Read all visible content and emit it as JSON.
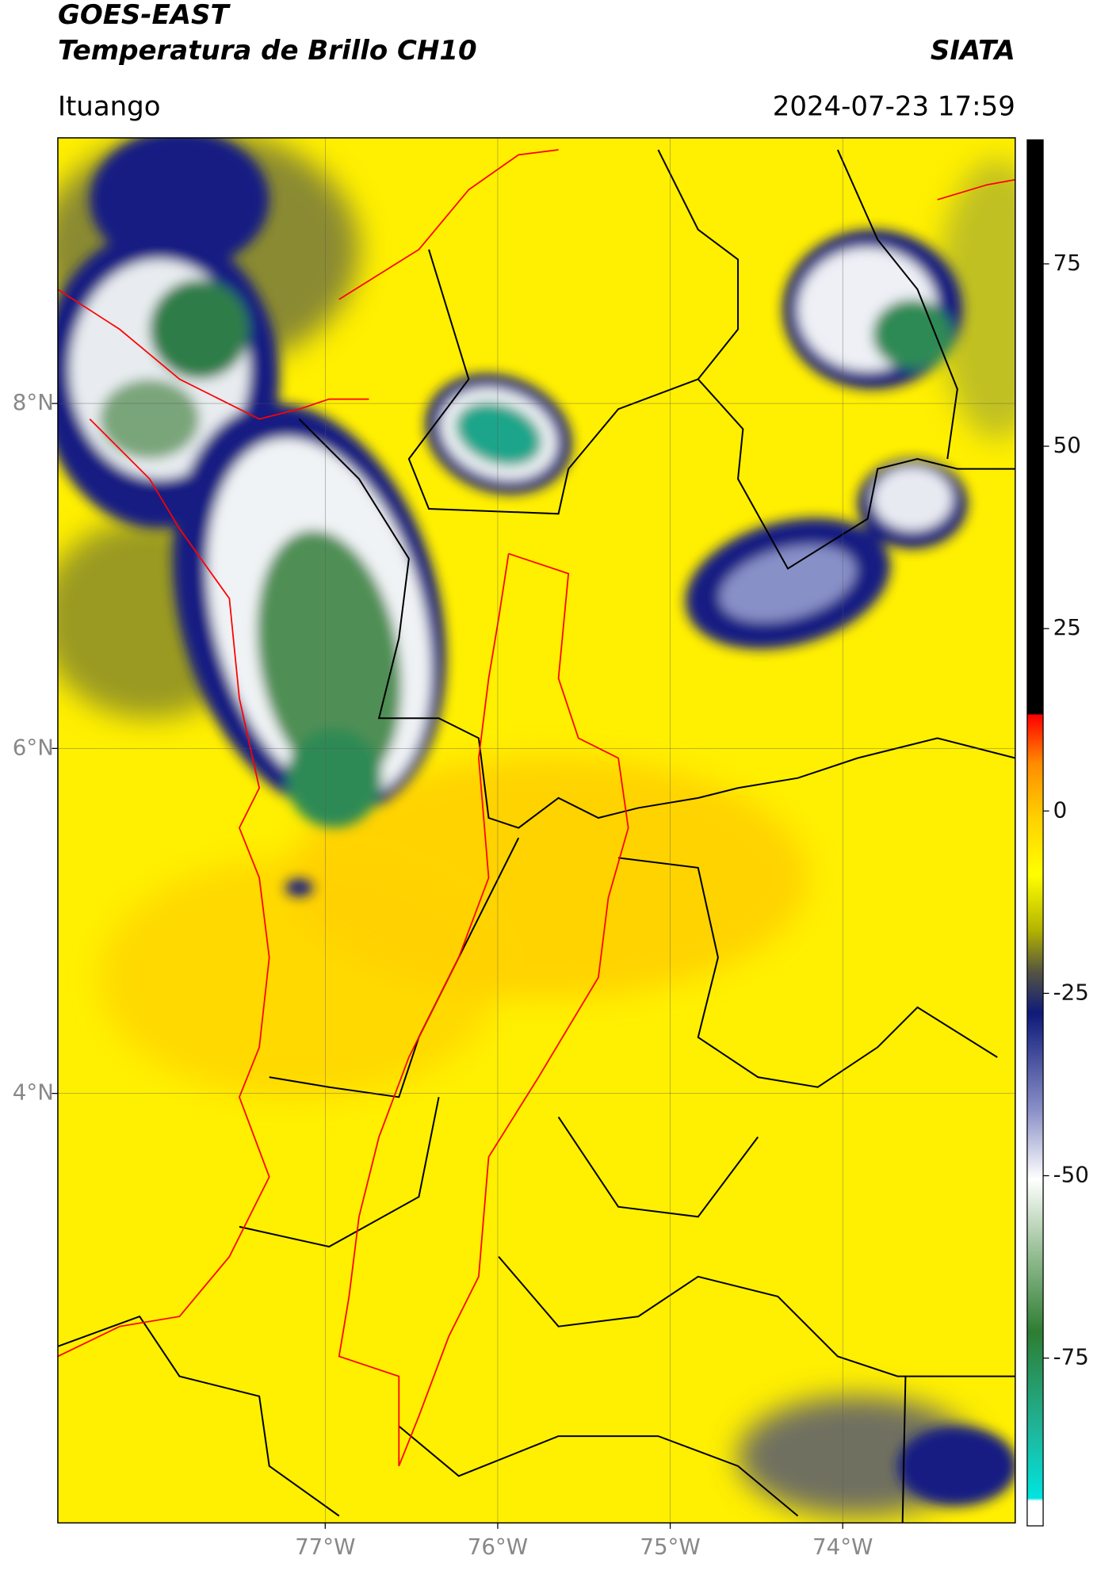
{
  "header": {
    "title": "GOES-EAST",
    "subtitle": "Temperatura de Brillo CH10",
    "organization": "SIATA",
    "location": "Ituango",
    "datetime": "2024-07-23 17:59"
  },
  "map": {
    "xlim": [
      -78.55,
      -73.0
    ],
    "ylim": [
      1.51,
      9.54
    ],
    "xticks": [
      {
        "value": -77,
        "label": "77°W"
      },
      {
        "value": -76,
        "label": "76°W"
      },
      {
        "value": -75,
        "label": "75°W"
      },
      {
        "value": -74,
        "label": "74°W"
      }
    ],
    "yticks": [
      {
        "value": 8,
        "label": "8°N"
      },
      {
        "value": 6,
        "label": "6°N"
      },
      {
        "value": 4,
        "label": "4°N"
      }
    ],
    "grid": true
  },
  "colorbar": {
    "lim": [
      -98,
      92
    ],
    "ticks": [
      75,
      50,
      25,
      0,
      -25,
      -50,
      -75
    ]
  }
}
